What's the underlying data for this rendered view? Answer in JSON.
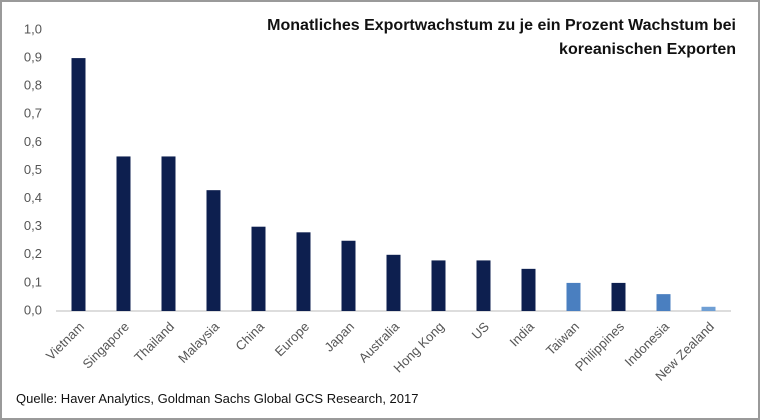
{
  "chart_data": {
    "type": "bar",
    "title": "Monatliches Exportwachstum  zu je ein Prozent Wachstum bei koreanischen Exporten",
    "source": "Quelle: Haver Analytics, Goldman Sachs Global GCS Research, 2017",
    "categories": [
      "Vietnam",
      "Singapore",
      "Thailand",
      "Malaysia",
      "China",
      "Europe",
      "Japan",
      "Australia",
      "Hong Kong",
      "US",
      "India",
      "Taiwan",
      "Philippines",
      "Indonesia",
      "New Zealand"
    ],
    "values": [
      0.9,
      0.55,
      0.55,
      0.43,
      0.3,
      0.28,
      0.25,
      0.2,
      0.18,
      0.18,
      0.15,
      0.1,
      0.1,
      0.06,
      0.015
    ],
    "colors": [
      "#0d1f4f",
      "#0d1f4f",
      "#0d1f4f",
      "#0d1f4f",
      "#0d1f4f",
      "#0d1f4f",
      "#0d1f4f",
      "#0d1f4f",
      "#0d1f4f",
      "#0d1f4f",
      "#0d1f4f",
      "#4a7fc0",
      "#0d1f4f",
      "#4a7fc0",
      "#6f9fd4"
    ],
    "ylim": [
      0,
      1.0
    ],
    "yticks": [
      {
        "value": 0,
        "label": "0,0"
      },
      {
        "value": 0.1,
        "label": "0,1"
      },
      {
        "value": 0.2,
        "label": "0,2"
      },
      {
        "value": 0.3,
        "label": "0,3"
      },
      {
        "value": 0.4,
        "label": "0,4"
      },
      {
        "value": 0.5,
        "label": "0,5"
      },
      {
        "value": 0.6,
        "label": "0,6"
      },
      {
        "value": 0.7,
        "label": "0,7"
      },
      {
        "value": 0.8,
        "label": "0,8"
      },
      {
        "value": 0.9,
        "label": "0,9"
      },
      {
        "value": 1.0,
        "label": "1,0"
      }
    ],
    "grid": false
  }
}
